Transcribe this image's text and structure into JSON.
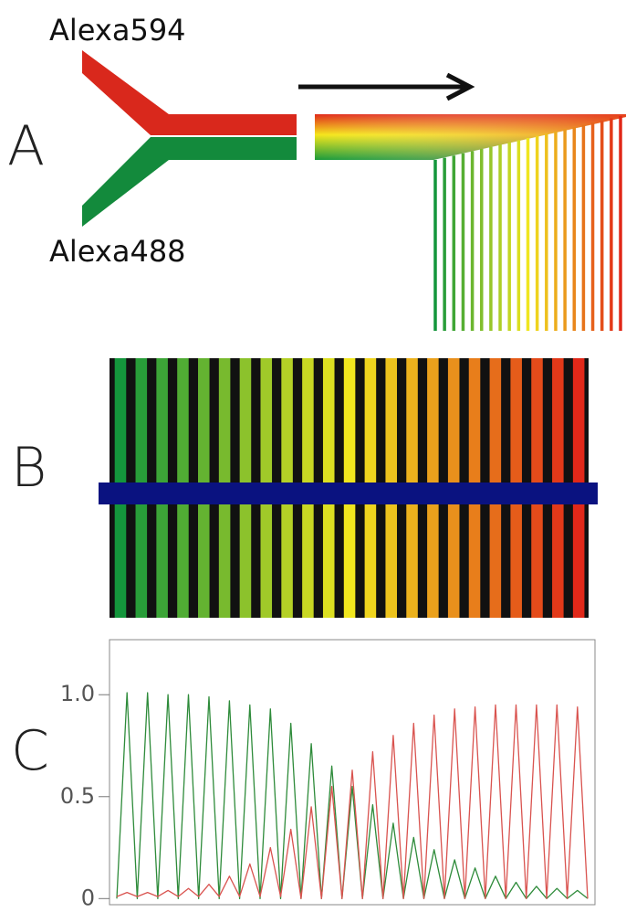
{
  "panel_a": {
    "label": "A",
    "top_inlet": "Alexa594",
    "bottom_inlet": "Alexa488"
  },
  "panel_b": {
    "label": "B"
  },
  "panel_c": {
    "label": "C"
  },
  "chart_data": {
    "type": "line",
    "ylim": [
      -0.03,
      1.27
    ],
    "yticks": [
      0,
      0.5,
      {
        "value": 1,
        "label": "1.0"
      }
    ],
    "series": [
      {
        "name": "Alexa488",
        "color": "#2e8b3a",
        "values": [
          0,
          1.01,
          0,
          1.01,
          0,
          1.0,
          0,
          1.0,
          0,
          0.99,
          0,
          0.97,
          0,
          0.95,
          0,
          0.93,
          0,
          0.86,
          0,
          0.76,
          0,
          0.65,
          0,
          0.55,
          0,
          0.46,
          0,
          0.37,
          0,
          0.3,
          0,
          0.24,
          0,
          0.19,
          0,
          0.15,
          0,
          0.11,
          0,
          0.08,
          0,
          0.06,
          0,
          0.05,
          0,
          0.04,
          0
        ]
      },
      {
        "name": "Alexa594",
        "color": "#d9534f",
        "values": [
          0.01,
          0.03,
          0.01,
          0.03,
          0.01,
          0.04,
          0.01,
          0.05,
          0.01,
          0.07,
          0.01,
          0.11,
          0.01,
          0.17,
          0.01,
          0.25,
          0.01,
          0.34,
          0,
          0.45,
          0,
          0.55,
          0,
          0.63,
          0,
          0.72,
          0,
          0.8,
          0,
          0.86,
          0,
          0.9,
          0,
          0.93,
          0,
          0.94,
          0,
          0.95,
          0,
          0.95,
          0,
          0.95,
          0,
          0.95,
          0,
          0.94,
          0
        ]
      }
    ]
  }
}
